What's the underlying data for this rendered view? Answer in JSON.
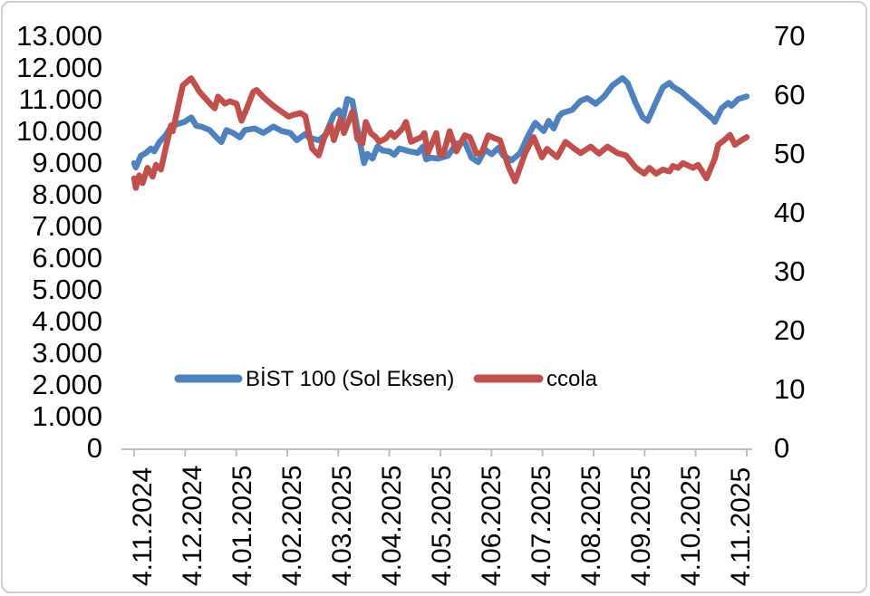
{
  "figure": {
    "background": "#ffffff",
    "border_color": "#cfcfcf",
    "axis_line_color": "#bfbfbf",
    "text_color": "#000000"
  },
  "chart_data": {
    "type": "line",
    "title": "",
    "x_axis": {
      "unit": "days since 4.11.2024",
      "range_days": [
        0,
        365
      ],
      "tick_labels": [
        "4.11.2024",
        "4.12.2024",
        "4.01.2025",
        "4.02.2025",
        "4.03.2025",
        "4.04.2025",
        "4.05.2025",
        "4.06.2025",
        "4.07.2025",
        "4.08.2025",
        "4.09.2025",
        "4.10.2025",
        "4.11.2025"
      ]
    },
    "y_axis_left": {
      "min": 0,
      "max": 13000,
      "step": 1000,
      "tick_labels": [
        "0",
        "1.000",
        "2.000",
        "3.000",
        "4.000",
        "5.000",
        "6.000",
        "7.000",
        "8.000",
        "9.000",
        "10.000",
        "11.000",
        "12.000",
        "13.000"
      ]
    },
    "y_axis_right": {
      "min": 0,
      "max": 70,
      "step": 10,
      "tick_labels": [
        "0",
        "10",
        "20",
        "30",
        "40",
        "50",
        "60",
        "70"
      ]
    },
    "legend": {
      "position": "inside-bottom-center"
    },
    "series": [
      {
        "name": "BİST 100 (Sol Eksen)",
        "axis": "left",
        "color": "#4f81bd",
        "points": [
          [
            0,
            8970
          ],
          [
            1,
            8830
          ],
          [
            4,
            9200
          ],
          [
            7,
            9290
          ],
          [
            10,
            9430
          ],
          [
            12,
            9340
          ],
          [
            15,
            9630
          ],
          [
            19,
            9860
          ],
          [
            22,
            10120
          ],
          [
            26,
            10210
          ],
          [
            30,
            10270
          ],
          [
            34,
            10410
          ],
          [
            37,
            10150
          ],
          [
            40,
            10120
          ],
          [
            45,
            10010
          ],
          [
            49,
            9780
          ],
          [
            52,
            9630
          ],
          [
            55,
            10010
          ],
          [
            59,
            9920
          ],
          [
            63,
            9780
          ],
          [
            66,
            10010
          ],
          [
            72,
            10060
          ],
          [
            77,
            9920
          ],
          [
            83,
            10120
          ],
          [
            88,
            9980
          ],
          [
            93,
            9920
          ],
          [
            97,
            9690
          ],
          [
            102,
            9890
          ],
          [
            104,
            9780
          ],
          [
            110,
            9690
          ],
          [
            114,
            9860
          ],
          [
            119,
            10500
          ],
          [
            122,
            10640
          ],
          [
            124,
            10270
          ],
          [
            127,
            10990
          ],
          [
            130,
            10930
          ],
          [
            133,
            10060
          ],
          [
            137,
            8970
          ],
          [
            139,
            9260
          ],
          [
            142,
            9110
          ],
          [
            145,
            9490
          ],
          [
            148,
            9370
          ],
          [
            152,
            9340
          ],
          [
            155,
            9230
          ],
          [
            158,
            9430
          ],
          [
            164,
            9340
          ],
          [
            169,
            9290
          ],
          [
            172,
            9490
          ],
          [
            174,
            9090
          ],
          [
            177,
            9140
          ],
          [
            181,
            9110
          ],
          [
            187,
            9200
          ],
          [
            192,
            9580
          ],
          [
            197,
            9630
          ],
          [
            201,
            9140
          ],
          [
            205,
            9000
          ],
          [
            209,
            9400
          ],
          [
            213,
            9250
          ],
          [
            217,
            9450
          ],
          [
            220,
            9200
          ],
          [
            225,
            9060
          ],
          [
            230,
            9290
          ],
          [
            235,
            9860
          ],
          [
            239,
            10240
          ],
          [
            244,
            9980
          ],
          [
            247,
            10300
          ],
          [
            250,
            10060
          ],
          [
            253,
            10440
          ],
          [
            255,
            10550
          ],
          [
            261,
            10650
          ],
          [
            266,
            10930
          ],
          [
            270,
            11020
          ],
          [
            275,
            10840
          ],
          [
            280,
            11070
          ],
          [
            285,
            11420
          ],
          [
            291,
            11650
          ],
          [
            294,
            11500
          ],
          [
            299,
            10840
          ],
          [
            303,
            10410
          ],
          [
            306,
            10300
          ],
          [
            310,
            10780
          ],
          [
            315,
            11360
          ],
          [
            319,
            11500
          ],
          [
            321,
            11380
          ],
          [
            326,
            11220
          ],
          [
            331,
            10990
          ],
          [
            336,
            10780
          ],
          [
            340,
            10580
          ],
          [
            345,
            10350
          ],
          [
            346,
            10270
          ],
          [
            350,
            10700
          ],
          [
            354,
            10870
          ],
          [
            356,
            10780
          ],
          [
            360,
            10990
          ],
          [
            365,
            11070
          ]
        ]
      },
      {
        "name": "ccola",
        "axis": "right",
        "color": "#c0504d",
        "points": [
          [
            0,
            45.7
          ],
          [
            1,
            44.1
          ],
          [
            3,
            46.2
          ],
          [
            5,
            44.9
          ],
          [
            8,
            47.5
          ],
          [
            11,
            46.0
          ],
          [
            13,
            48.0
          ],
          [
            16,
            47.2
          ],
          [
            19,
            51.1
          ],
          [
            22,
            54.7
          ],
          [
            23,
            53.7
          ],
          [
            29,
            61.5
          ],
          [
            34,
            62.7
          ],
          [
            39,
            60.4
          ],
          [
            44,
            58.8
          ],
          [
            48,
            57.6
          ],
          [
            50,
            59.6
          ],
          [
            54,
            58.4
          ],
          [
            57,
            58.8
          ],
          [
            61,
            58.4
          ],
          [
            64,
            55.5
          ],
          [
            67,
            57.5
          ],
          [
            71,
            60.4
          ],
          [
            73,
            60.7
          ],
          [
            77,
            59.5
          ],
          [
            81,
            58.5
          ],
          [
            84,
            57.8
          ],
          [
            88,
            57.0
          ],
          [
            92,
            56.2
          ],
          [
            95,
            56.5
          ],
          [
            99,
            56.8
          ],
          [
            102,
            56.3
          ],
          [
            106,
            50.8
          ],
          [
            110,
            49.6
          ],
          [
            113,
            52.4
          ],
          [
            117,
            54.7
          ],
          [
            119,
            52.2
          ],
          [
            123,
            55.8
          ],
          [
            125,
            53.4
          ],
          [
            130,
            57.0
          ],
          [
            131,
            56.2
          ],
          [
            133,
            52.4
          ],
          [
            136,
            51.6
          ],
          [
            138,
            55.3
          ],
          [
            141,
            53.4
          ],
          [
            144,
            52.7
          ],
          [
            146,
            51.9
          ],
          [
            150,
            52.5
          ],
          [
            153,
            53.5
          ],
          [
            155,
            52.7
          ],
          [
            160,
            54.2
          ],
          [
            162,
            55.3
          ],
          [
            165,
            51.9
          ],
          [
            171,
            52.7
          ],
          [
            173,
            53.4
          ],
          [
            175,
            50.0
          ],
          [
            180,
            53.4
          ],
          [
            182,
            49.9
          ],
          [
            184,
            49.6
          ],
          [
            188,
            53.7
          ],
          [
            192,
            50.3
          ],
          [
            197,
            53.0
          ],
          [
            200,
            52.7
          ],
          [
            204,
            49.9
          ],
          [
            207,
            50.0
          ],
          [
            211,
            53.0
          ],
          [
            215,
            52.5
          ],
          [
            218,
            52.2
          ],
          [
            223,
            47.7
          ],
          [
            227,
            45.2
          ],
          [
            233,
            50.0
          ],
          [
            238,
            52.7
          ],
          [
            243,
            49.3
          ],
          [
            246,
            50.7
          ],
          [
            252,
            49.3
          ],
          [
            257,
            51.9
          ],
          [
            262,
            50.8
          ],
          [
            266,
            50.0
          ],
          [
            272,
            51.1
          ],
          [
            277,
            49.9
          ],
          [
            282,
            51.1
          ],
          [
            288,
            50.0
          ],
          [
            293,
            49.6
          ],
          [
            299,
            47.5
          ],
          [
            304,
            46.5
          ],
          [
            307,
            47.5
          ],
          [
            311,
            46.5
          ],
          [
            315,
            47.2
          ],
          [
            319,
            46.9
          ],
          [
            321,
            47.8
          ],
          [
            324,
            47.5
          ],
          [
            327,
            48.3
          ],
          [
            333,
            47.5
          ],
          [
            336,
            48.0
          ],
          [
            341,
            45.7
          ],
          [
            346,
            49.1
          ],
          [
            348,
            51.4
          ],
          [
            352,
            52.3
          ],
          [
            355,
            53.1
          ],
          [
            358,
            51.4
          ],
          [
            362,
            52.2
          ],
          [
            365,
            52.7
          ]
        ]
      }
    ]
  }
}
